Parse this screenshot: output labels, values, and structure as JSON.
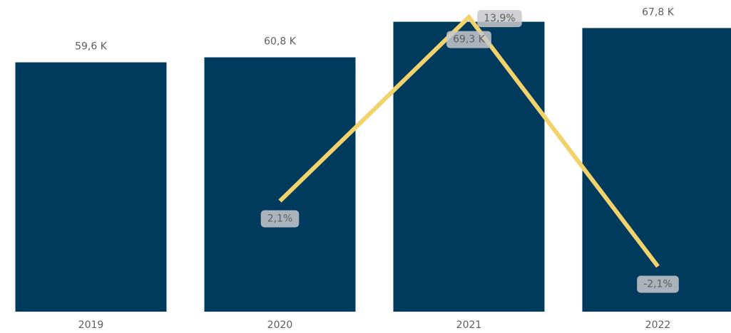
{
  "chart_data": {
    "type": "bar",
    "categories": [
      "2019",
      "2020",
      "2021",
      "2022"
    ],
    "series": [
      {
        "type": "bar",
        "color": "#003a5d",
        "values": [
          59.6,
          60.8,
          69.3,
          67.8
        ],
        "value_labels": [
          "59,6 K",
          "60,8 K",
          "69,3 K",
          "67,8 K"
        ]
      },
      {
        "type": "line",
        "axis": "y2",
        "color": "#f2d36b",
        "values": [
          null,
          2.1,
          13.9,
          -2.1
        ],
        "value_labels": [
          null,
          "2,1%",
          "13,9%",
          "-2,1%"
        ]
      }
    ],
    "ylim": [
      0,
      74.5
    ],
    "y2lim": [
      -5,
      15
    ]
  }
}
